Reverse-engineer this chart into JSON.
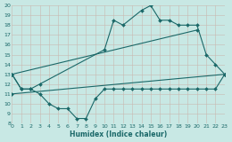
{
  "xlabel": "Humidex (Indice chaleur)",
  "bg_color": "#c8e8e4",
  "line_color": "#1a6868",
  "xlim": [
    0,
    23
  ],
  "ylim": [
    8,
    20
  ],
  "xticks": [
    0,
    1,
    2,
    3,
    4,
    5,
    6,
    7,
    8,
    9,
    10,
    11,
    12,
    13,
    14,
    15,
    16,
    17,
    18,
    19,
    20,
    21,
    22,
    23
  ],
  "yticks": [
    8,
    9,
    10,
    11,
    12,
    13,
    14,
    15,
    16,
    17,
    18,
    19,
    20
  ],
  "series": [
    {
      "x": [
        0,
        1,
        2,
        3,
        4,
        5,
        6,
        7,
        8,
        9,
        10,
        11,
        12,
        13,
        14,
        15,
        16,
        17,
        18,
        19,
        20,
        21,
        22,
        23
      ],
      "y": [
        13,
        11.5,
        11.5,
        11,
        10,
        9.5,
        9.5,
        8.5,
        8.5,
        10.5,
        11.5,
        11.5,
        11.5,
        11.5,
        11.5,
        11.5,
        11.5,
        11.5,
        11.5,
        11.5,
        11.5,
        11.5,
        11.5,
        13
      ]
    },
    {
      "x": [
        0,
        23
      ],
      "y": [
        11,
        13
      ]
    },
    {
      "x": [
        0,
        20
      ],
      "y": [
        13,
        17.5
      ]
    },
    {
      "x": [
        0,
        1,
        2,
        3,
        10,
        11,
        12,
        14,
        15,
        16,
        17,
        18,
        19,
        20,
        21,
        22,
        23
      ],
      "y": [
        13,
        11.5,
        11.5,
        12,
        15.5,
        18.5,
        18,
        19.5,
        20,
        18.5,
        18.5,
        18,
        18,
        18,
        15,
        14,
        13
      ]
    }
  ]
}
